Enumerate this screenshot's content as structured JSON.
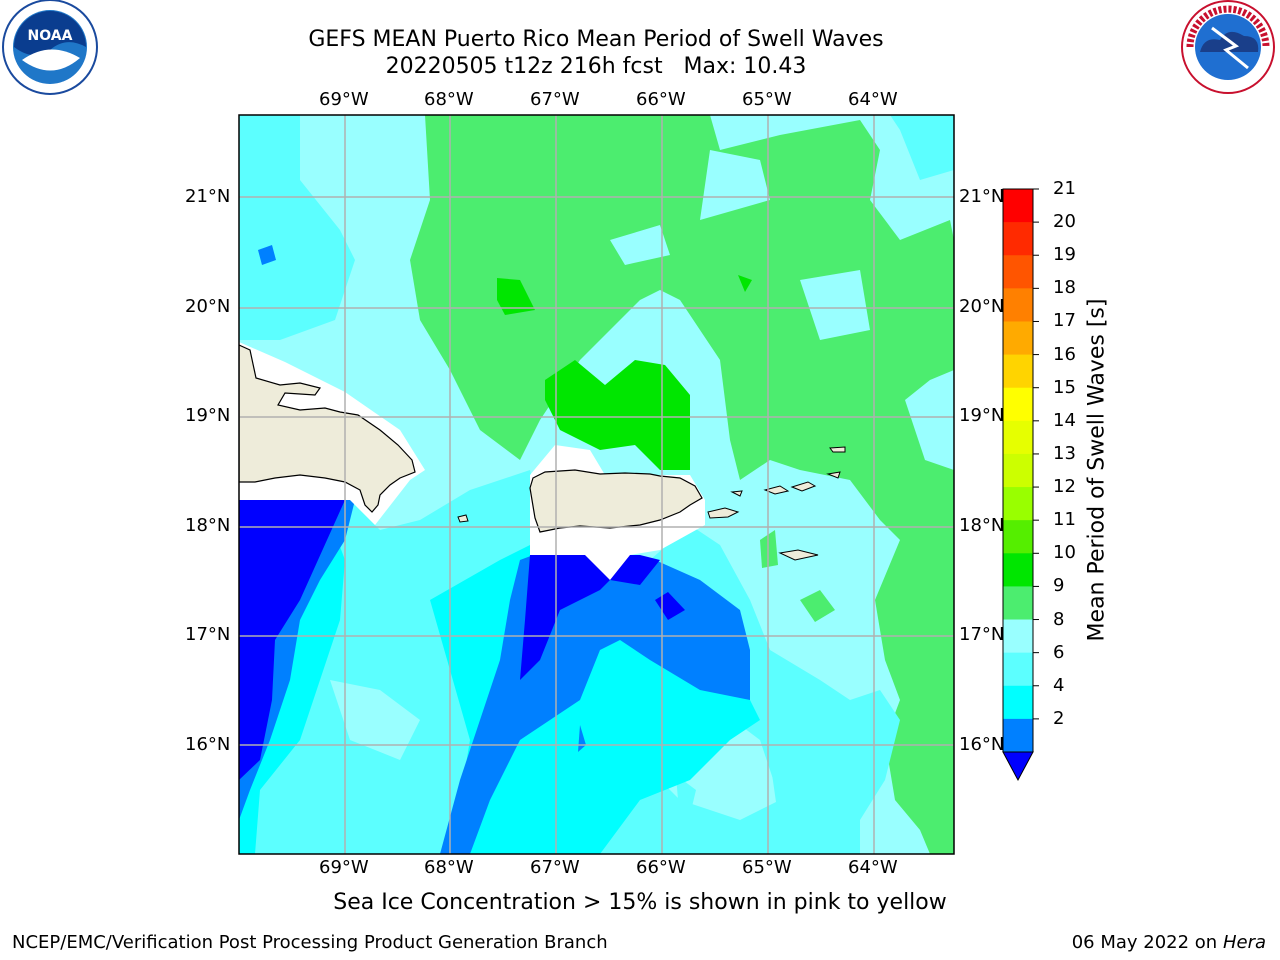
{
  "header": {
    "title_line1": "GEFS MEAN Puerto Rico Mean Period of Swell Waves",
    "title_line2": "20220505 t12z 216h fcst   Max: 10.43"
  },
  "logos": {
    "left": "noaa-logo",
    "right": "nws-logo"
  },
  "map": {
    "lon_labels": [
      "69°W",
      "68°W",
      "67°W",
      "66°W",
      "65°W",
      "64°W"
    ],
    "lat_labels": [
      "21°N",
      "20°N",
      "19°N",
      "18°N",
      "17°N",
      "16°N"
    ],
    "gridlines": true
  },
  "colorbar": {
    "label": "Mean Period of Swell Waves [s]",
    "ticks": [
      "21",
      "20",
      "19",
      "18",
      "17",
      "16",
      "15",
      "14",
      "13",
      "12",
      "11",
      "10",
      "9",
      "8",
      "6",
      "4",
      "2"
    ],
    "colors": [
      "#ff0000",
      "#ff2a00",
      "#ff5500",
      "#ff8000",
      "#ffaa00",
      "#ffd400",
      "#ffff00",
      "#e6ff00",
      "#ccff00",
      "#99ff00",
      "#55ee00",
      "#00e600",
      "#4ced6f",
      "#99ffff",
      "#5cffff",
      "#00ffff",
      "#0080ff"
    ],
    "extend_color": "#0000ff"
  },
  "footer": {
    "note": "Sea Ice Concentration > 15% is shown in pink to yellow",
    "left": "NCEP/EMC/Verification Post Processing Product Generation Branch",
    "right_date": "06 May 2022 on",
    "right_host": "Hera"
  }
}
